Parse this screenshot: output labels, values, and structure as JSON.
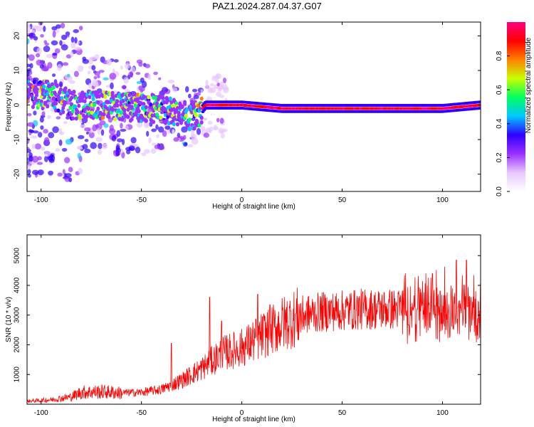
{
  "title": "PAZ1.2024.287.04.37.G07",
  "chart_data": [
    {
      "type": "heatmap",
      "xlabel": "Height of straight line (km)",
      "ylabel": "Frequency (Hz)",
      "xlim": [
        -107,
        119
      ],
      "ylim": [
        -25,
        24
      ],
      "xticks": [
        -100,
        -50,
        0,
        50,
        100
      ],
      "yticks": [
        -20,
        -10,
        0,
        10,
        20
      ],
      "colorbar": {
        "label": "Normalized spectral amplitude",
        "range": [
          0,
          1
        ],
        "ticks": [
          "0.0",
          "0.2",
          "0.4",
          "0.6",
          "0.8"
        ],
        "tick_values": [
          0,
          0.2,
          0.4,
          0.6,
          0.8
        ],
        "colors": [
          "#ffffff",
          "#e8c8ff",
          "#9b30ff",
          "#3000ff",
          "#00c8ff",
          "#00ff60",
          "#c8ff00",
          "#ff8000",
          "#ff0000",
          "#ff0080"
        ]
      },
      "ridge": [
        {
          "x": -107,
          "f": 3
        },
        {
          "x": -95,
          "f": 3
        },
        {
          "x": -85,
          "f": 0
        },
        {
          "x": -75,
          "f": 0
        },
        {
          "x": -65,
          "f": 0
        },
        {
          "x": -55,
          "f": -1
        },
        {
          "x": -45,
          "f": -1
        },
        {
          "x": -35,
          "f": -2
        },
        {
          "x": -28,
          "f": -3
        },
        {
          "x": -22,
          "f": -3
        },
        {
          "x": -18,
          "f": 0
        },
        {
          "x": 0,
          "f": 0
        },
        {
          "x": 20,
          "f": -1
        },
        {
          "x": 50,
          "f": -1
        },
        {
          "x": 80,
          "f": -1
        },
        {
          "x": 100,
          "f": -1
        },
        {
          "x": 119,
          "f": 0
        }
      ]
    },
    {
      "type": "line",
      "xlabel": "Height of straight line (km)",
      "ylabel": "SNR (10 * v/v)",
      "xlim": [
        -107,
        119
      ],
      "ylim": [
        0,
        5700
      ],
      "xticks": [
        -100,
        -50,
        0,
        50,
        100
      ],
      "yticks": [
        1000,
        2000,
        3000,
        4000,
        5000
      ],
      "color": "#ff0000",
      "trend": [
        {
          "x": -107,
          "y": 100
        },
        {
          "x": -95,
          "y": 150
        },
        {
          "x": -85,
          "y": 250
        },
        {
          "x": -80,
          "y": 400
        },
        {
          "x": -70,
          "y": 420
        },
        {
          "x": -60,
          "y": 380
        },
        {
          "x": -50,
          "y": 400
        },
        {
          "x": -40,
          "y": 500
        },
        {
          "x": -30,
          "y": 800
        },
        {
          "x": -20,
          "y": 1200
        },
        {
          "x": -10,
          "y": 1700
        },
        {
          "x": 0,
          "y": 1900
        },
        {
          "x": 10,
          "y": 2300
        },
        {
          "x": 20,
          "y": 2700
        },
        {
          "x": 30,
          "y": 3000
        },
        {
          "x": 40,
          "y": 3100
        },
        {
          "x": 50,
          "y": 3150
        },
        {
          "x": 60,
          "y": 3200
        },
        {
          "x": 70,
          "y": 3200
        },
        {
          "x": 80,
          "y": 3200
        },
        {
          "x": 90,
          "y": 3250
        },
        {
          "x": 100,
          "y": 3250
        },
        {
          "x": 110,
          "y": 3200
        },
        {
          "x": 119,
          "y": 3200
        }
      ],
      "peaks": [
        {
          "x": -35,
          "y": 2050
        },
        {
          "x": -16,
          "y": 3600
        },
        {
          "x": -10,
          "y": 2800
        },
        {
          "x": 8,
          "y": 3700
        },
        {
          "x": 14,
          "y": 3350
        },
        {
          "x": 95,
          "y": 4400
        },
        {
          "x": 107,
          "y": 4850
        },
        {
          "x": 112,
          "y": 4850
        }
      ]
    }
  ]
}
